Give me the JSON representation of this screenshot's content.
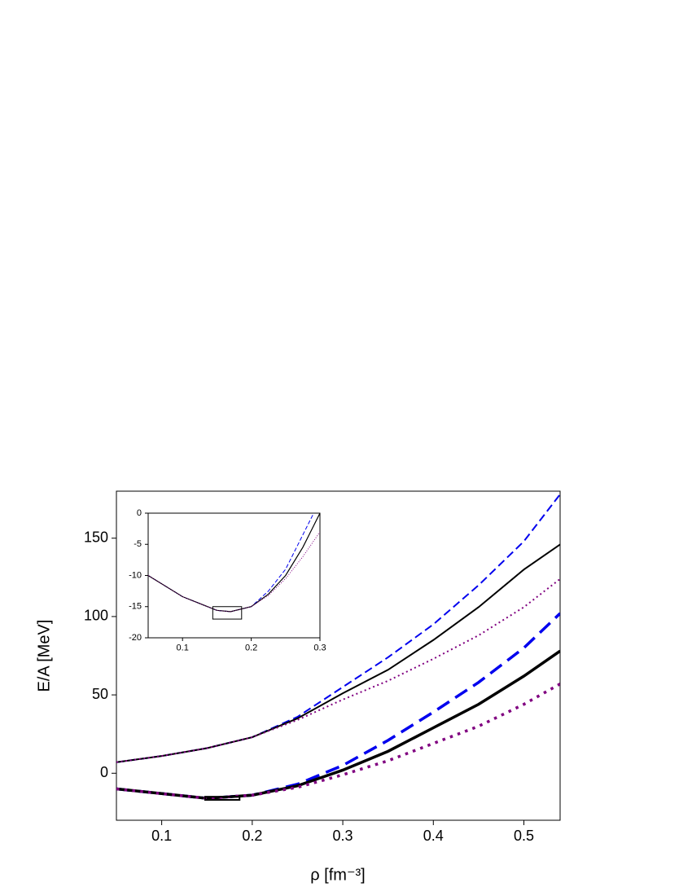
{
  "chart_data": [
    {
      "type": "line",
      "xlabel": "ρ [fm⁻³]",
      "ylabel": "E/A [MeV]",
      "x": [
        0.05,
        0.1,
        0.15,
        0.2,
        0.25,
        0.3,
        0.35,
        0.4,
        0.45,
        0.5,
        0.54
      ],
      "series": [
        {
          "color": "#0000ee",
          "dash": "dashed",
          "width": 2,
          "values": [
            7,
            11,
            16,
            23,
            36,
            55,
            74,
            95,
            120,
            148,
            178
          ]
        },
        {
          "color": "#000000",
          "dash": "solid",
          "width": 2,
          "values": [
            7,
            11,
            16,
            23,
            35,
            51,
            66,
            85,
            106,
            130,
            146
          ]
        },
        {
          "color": "#800080",
          "dash": "dotted",
          "width": 2,
          "values": [
            7,
            11,
            16,
            23,
            34,
            47,
            59,
            73,
            88,
            106,
            124
          ]
        },
        {
          "color": "#0000ee",
          "dash": "dashed",
          "width": 3.5,
          "values": [
            -10,
            -13,
            -16,
            -14,
            -7,
            5,
            21,
            39,
            58,
            80,
            102
          ]
        },
        {
          "color": "#000000",
          "dash": "solid",
          "width": 3.5,
          "values": [
            -10,
            -13,
            -16,
            -14,
            -8,
            2,
            14,
            29,
            44,
            62,
            78
          ]
        },
        {
          "color": "#800080",
          "dash": "dotted",
          "width": 3.5,
          "values": [
            -10,
            -13,
            -16,
            -14,
            -9,
            -1,
            8,
            19,
            30,
            44,
            57
          ]
        }
      ],
      "region": {
        "x": [
          0.148,
          0.186
        ],
        "y": [
          -17,
          -15
        ]
      },
      "xlim": [
        0.05,
        0.54
      ],
      "xticks": [
        0.1,
        0.2,
        0.3,
        0.4,
        0.5
      ],
      "ylim": [
        -30,
        180
      ],
      "yticks": [
        0,
        50,
        100,
        150
      ]
    },
    {
      "type": "line",
      "x": [
        0.05,
        0.1,
        0.15,
        0.17,
        0.2,
        0.225,
        0.25,
        0.275,
        0.3
      ],
      "series": [
        {
          "color": "#0000ee",
          "dash": "dashed",
          "width": 1,
          "values": [
            -10,
            -13.4,
            -15.6,
            -15.8,
            -15,
            -12.5,
            -9,
            -3.5,
            2
          ]
        },
        {
          "color": "#000000",
          "dash": "solid",
          "width": 1.2,
          "values": [
            -10,
            -13.4,
            -15.6,
            -15.8,
            -15,
            -13,
            -10,
            -5.5,
            0
          ]
        },
        {
          "color": "#800080",
          "dash": "dotted",
          "width": 1,
          "values": [
            -10,
            -13.4,
            -15.6,
            -15.8,
            -15,
            -13.2,
            -10.5,
            -7,
            -3
          ]
        }
      ],
      "region": {
        "x": [
          0.144,
          0.186
        ],
        "y": [
          -17,
          -15
        ]
      },
      "xlim": [
        0.05,
        0.3
      ],
      "xticks": [
        0.1,
        0.2,
        0.3
      ],
      "ylim": [
        -20,
        0
      ],
      "yticks": [
        -20,
        -15,
        -10,
        -5,
        0
      ]
    }
  ]
}
